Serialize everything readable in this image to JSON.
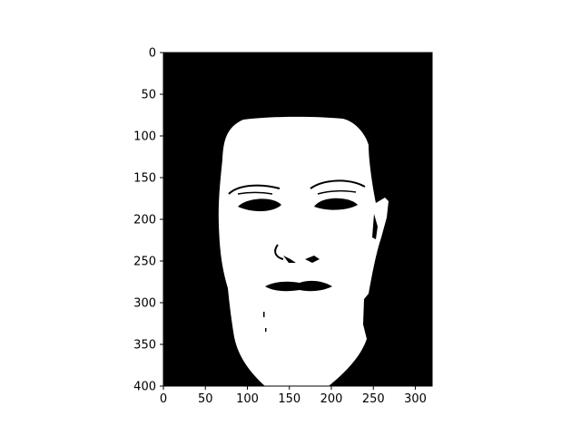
{
  "figure": {
    "image_description": "binary face segmentation mask",
    "image_size": {
      "width": 320,
      "height": 400
    },
    "background_color": "#ffffff",
    "mask_color": "#ffffff",
    "fill_color": "#000000"
  },
  "axes": {
    "x": {
      "range": [
        0,
        320
      ],
      "ticks": [
        0,
        50,
        100,
        150,
        200,
        250,
        300
      ]
    },
    "y": {
      "range": [
        0,
        400
      ],
      "inverted": true,
      "ticks": [
        0,
        50,
        100,
        150,
        200,
        250,
        300,
        350,
        400
      ]
    },
    "tick_labels": {
      "x": [
        "0",
        "50",
        "100",
        "150",
        "200",
        "250",
        "300"
      ],
      "y": [
        "0",
        "50",
        "100",
        "150",
        "200",
        "250",
        "300",
        "350",
        "400"
      ]
    }
  }
}
